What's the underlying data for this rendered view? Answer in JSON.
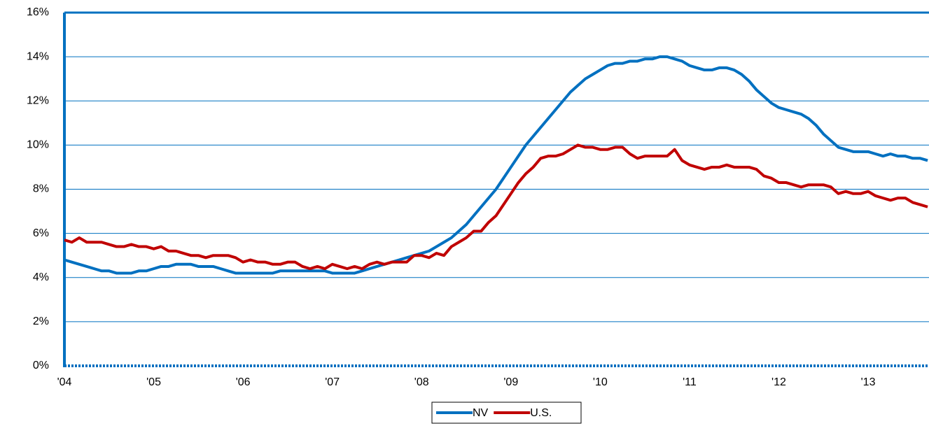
{
  "chart_data": {
    "type": "line",
    "categories": [
      "'04",
      null,
      null,
      null,
      null,
      null,
      null,
      null,
      null,
      null,
      null,
      null,
      "'05",
      null,
      null,
      null,
      null,
      null,
      null,
      null,
      null,
      null,
      null,
      null,
      "'06",
      null,
      null,
      null,
      null,
      null,
      null,
      null,
      null,
      null,
      null,
      null,
      "'07",
      null,
      null,
      null,
      null,
      null,
      null,
      null,
      null,
      null,
      null,
      null,
      "'08",
      null,
      null,
      null,
      null,
      null,
      null,
      null,
      null,
      null,
      null,
      null,
      "'09",
      null,
      null,
      null,
      null,
      null,
      null,
      null,
      null,
      null,
      null,
      null,
      "'10",
      null,
      null,
      null,
      null,
      null,
      null,
      null,
      null,
      null,
      null,
      null,
      "'11",
      null,
      null,
      null,
      null,
      null,
      null,
      null,
      null,
      null,
      null,
      null,
      "'12",
      null,
      null,
      null,
      null,
      null,
      null,
      null,
      null,
      null,
      null,
      null,
      "'13",
      null,
      null,
      null,
      null,
      null,
      null,
      null,
      null
    ],
    "series": [
      {
        "name": "NV",
        "color": "#0070c0",
        "values": [
          4.8,
          4.7,
          4.6,
          4.5,
          4.4,
          4.3,
          4.3,
          4.2,
          4.2,
          4.2,
          4.3,
          4.3,
          4.4,
          4.5,
          4.5,
          4.6,
          4.6,
          4.6,
          4.5,
          4.5,
          4.5,
          4.4,
          4.3,
          4.2,
          4.2,
          4.2,
          4.2,
          4.2,
          4.2,
          4.3,
          4.3,
          4.3,
          4.3,
          4.3,
          4.3,
          4.3,
          4.2,
          4.2,
          4.2,
          4.2,
          4.3,
          4.4,
          4.5,
          4.6,
          4.7,
          4.8,
          4.9,
          5.0,
          5.1,
          5.2,
          5.4,
          5.6,
          5.8,
          6.1,
          6.4,
          6.8,
          7.2,
          7.6,
          8.0,
          8.5,
          9.0,
          9.5,
          10.0,
          10.4,
          10.8,
          11.2,
          11.6,
          12.0,
          12.4,
          12.7,
          13.0,
          13.2,
          13.4,
          13.6,
          13.7,
          13.7,
          13.8,
          13.8,
          13.9,
          13.9,
          14.0,
          14.0,
          13.9,
          13.8,
          13.6,
          13.5,
          13.4,
          13.4,
          13.5,
          13.5,
          13.4,
          13.2,
          12.9,
          12.5,
          12.2,
          11.9,
          11.7,
          11.6,
          11.5,
          11.4,
          11.2,
          10.9,
          10.5,
          10.2,
          9.9,
          9.8,
          9.7,
          9.7,
          9.7,
          9.6,
          9.5,
          9.6,
          9.5,
          9.5,
          9.4,
          9.4,
          9.3
        ]
      },
      {
        "name": "U.S.",
        "color": "#c00000",
        "values": [
          5.7,
          5.6,
          5.8,
          5.6,
          5.6,
          5.6,
          5.5,
          5.4,
          5.4,
          5.5,
          5.4,
          5.4,
          5.3,
          5.4,
          5.2,
          5.2,
          5.1,
          5.0,
          5.0,
          4.9,
          5.0,
          5.0,
          5.0,
          4.9,
          4.7,
          4.8,
          4.7,
          4.7,
          4.6,
          4.6,
          4.7,
          4.7,
          4.5,
          4.4,
          4.5,
          4.4,
          4.6,
          4.5,
          4.4,
          4.5,
          4.4,
          4.6,
          4.7,
          4.6,
          4.7,
          4.7,
          4.7,
          5.0,
          5.0,
          4.9,
          5.1,
          5.0,
          5.4,
          5.6,
          5.8,
          6.1,
          6.1,
          6.5,
          6.8,
          7.3,
          7.8,
          8.3,
          8.7,
          9.0,
          9.4,
          9.5,
          9.5,
          9.6,
          9.8,
          10.0,
          9.9,
          9.9,
          9.8,
          9.8,
          9.9,
          9.9,
          9.6,
          9.4,
          9.5,
          9.5,
          9.5,
          9.5,
          9.8,
          9.3,
          9.1,
          9.0,
          8.9,
          9.0,
          9.0,
          9.1,
          9.0,
          9.0,
          9.0,
          8.9,
          8.6,
          8.5,
          8.3,
          8.3,
          8.2,
          8.1,
          8.2,
          8.2,
          8.2,
          8.1,
          7.8,
          7.9,
          7.8,
          7.8,
          7.9,
          7.7,
          7.6,
          7.5,
          7.6,
          7.6,
          7.4,
          7.3,
          7.2
        ]
      }
    ],
    "ylim": [
      0,
      16
    ],
    "yticks": [
      {
        "value": 0,
        "label": "0%"
      },
      {
        "value": 2,
        "label": "2%"
      },
      {
        "value": 4,
        "label": "4%"
      },
      {
        "value": 6,
        "label": "6%"
      },
      {
        "value": 8,
        "label": "8%"
      },
      {
        "value": 10,
        "label": "10%"
      },
      {
        "value": 12,
        "label": "12%"
      },
      {
        "value": 14,
        "label": "14%"
      },
      {
        "value": 16,
        "label": "16%"
      }
    ],
    "grid": true,
    "legend": "bottom"
  }
}
